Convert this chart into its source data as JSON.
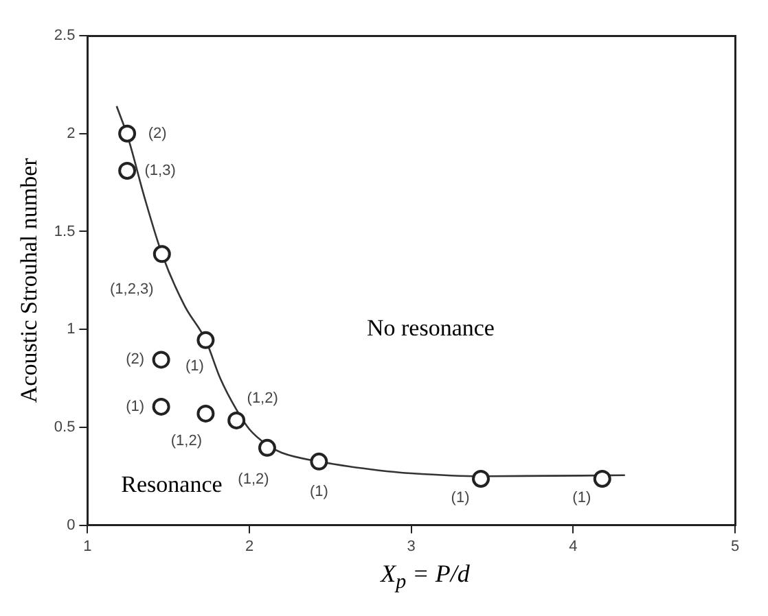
{
  "chart_data": {
    "type": "scatter",
    "xlabel": "X$_{p}$ = P/d",
    "ylabel": "Acoustic Strouhal number",
    "xlim": [
      1,
      5
    ],
    "ylim": [
      0,
      2.5
    ],
    "xticks": [
      1,
      2,
      3,
      4,
      5
    ],
    "yticks": [
      0,
      0.5,
      1,
      1.5,
      2,
      2.5
    ],
    "marker": "circle",
    "series": [
      {
        "color": "#222222",
        "x": [
          1.245,
          1.245,
          1.46,
          1.73,
          1.455,
          1.455,
          1.73,
          1.92,
          2.11,
          2.43,
          3.43,
          4.18
        ],
        "values": [
          2.0,
          1.81,
          1.385,
          0.945,
          0.845,
          0.605,
          0.57,
          0.535,
          0.395,
          0.325,
          0.237,
          0.237
        ]
      },
      {
        "type": "line",
        "color": "#333333",
        "marker": "none",
        "x": [
          1.18,
          1.25,
          1.35,
          1.46,
          1.6,
          1.73,
          1.82,
          1.92,
          2.0,
          2.11,
          2.2,
          2.43,
          2.8,
          3.0,
          3.43,
          4.32
        ],
        "values": [
          2.14,
          1.98,
          1.68,
          1.385,
          1.12,
          0.945,
          0.75,
          0.59,
          0.49,
          0.41,
          0.37,
          0.325,
          0.28,
          0.265,
          0.25,
          0.255
        ]
      }
    ],
    "annotations": [
      "(2)",
      "(1,3)",
      "(1,2,3)",
      "(1)",
      "(2)",
      "(1)",
      "(1,2)",
      "(1,2)",
      "(1,2)",
      "(1)",
      "(1)",
      "(1)",
      "No resonance",
      "Resonance"
    ]
  }
}
